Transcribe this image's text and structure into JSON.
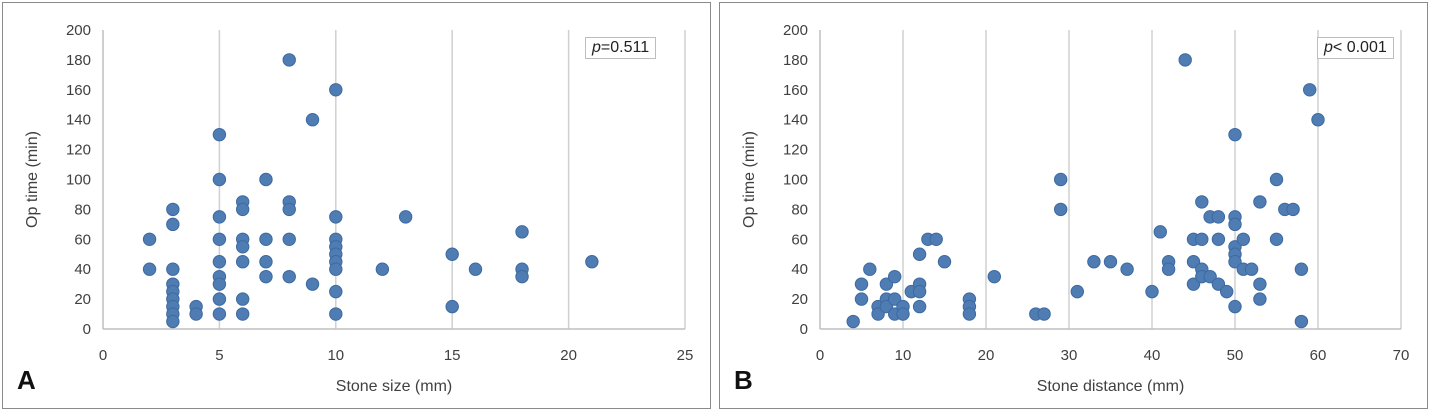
{
  "colors": {
    "marker": "#4f7db3",
    "marker_edge": "#3c6aa0",
    "grid": "#d0d0d0",
    "text": "#404040"
  },
  "chart_data": [
    {
      "type": "scatter",
      "panel_label": "A",
      "xlabel": "Stone size (mm)",
      "ylabel": "Op time (min)",
      "xlim": [
        0,
        25
      ],
      "ylim": [
        0,
        200
      ],
      "xticks": [
        0,
        5,
        10,
        15,
        20,
        25
      ],
      "yticks": [
        0,
        20,
        40,
        60,
        80,
        100,
        120,
        140,
        160,
        180,
        200
      ],
      "grid": "vertical major",
      "annotation": {
        "italic": "p",
        "text": "=0.511"
      },
      "points": [
        [
          2,
          60
        ],
        [
          2,
          40
        ],
        [
          3,
          80
        ],
        [
          3,
          70
        ],
        [
          3,
          40
        ],
        [
          3,
          30
        ],
        [
          3,
          25
        ],
        [
          3,
          20
        ],
        [
          3,
          15
        ],
        [
          3,
          10
        ],
        [
          3,
          5
        ],
        [
          4,
          15
        ],
        [
          4,
          10
        ],
        [
          5,
          130
        ],
        [
          5,
          100
        ],
        [
          5,
          75
        ],
        [
          5,
          60
        ],
        [
          5,
          45
        ],
        [
          5,
          35
        ],
        [
          5,
          30
        ],
        [
          5,
          20
        ],
        [
          5,
          10
        ],
        [
          6,
          85
        ],
        [
          6,
          80
        ],
        [
          6,
          60
        ],
        [
          6,
          55
        ],
        [
          6,
          45
        ],
        [
          6,
          20
        ],
        [
          6,
          10
        ],
        [
          7,
          100
        ],
        [
          7,
          60
        ],
        [
          7,
          45
        ],
        [
          7,
          35
        ],
        [
          8,
          180
        ],
        [
          8,
          85
        ],
        [
          8,
          80
        ],
        [
          8,
          60
        ],
        [
          8,
          35
        ],
        [
          9,
          140
        ],
        [
          9,
          30
        ],
        [
          10,
          160
        ],
        [
          10,
          75
        ],
        [
          10,
          60
        ],
        [
          10,
          55
        ],
        [
          10,
          50
        ],
        [
          10,
          45
        ],
        [
          10,
          40
        ],
        [
          10,
          25
        ],
        [
          10,
          10
        ],
        [
          12,
          40
        ],
        [
          13,
          75
        ],
        [
          15,
          50
        ],
        [
          15,
          15
        ],
        [
          16,
          40
        ],
        [
          18,
          65
        ],
        [
          18,
          40
        ],
        [
          18,
          35
        ],
        [
          21,
          45
        ]
      ]
    },
    {
      "type": "scatter",
      "panel_label": "B",
      "xlabel": "Stone distance (mm)",
      "ylabel": "Op time (min)",
      "xlim": [
        0,
        70
      ],
      "ylim": [
        0,
        200
      ],
      "xticks": [
        0,
        10,
        20,
        30,
        40,
        50,
        60,
        70
      ],
      "yticks": [
        0,
        20,
        40,
        60,
        80,
        100,
        120,
        140,
        160,
        180,
        200
      ],
      "grid": "vertical major",
      "annotation": {
        "italic": "p",
        "text": "< 0.001"
      },
      "points": [
        [
          4,
          5
        ],
        [
          5,
          30
        ],
        [
          5,
          20
        ],
        [
          6,
          40
        ],
        [
          7,
          15
        ],
        [
          7,
          10
        ],
        [
          8,
          30
        ],
        [
          8,
          20
        ],
        [
          8,
          15
        ],
        [
          9,
          35
        ],
        [
          9,
          20
        ],
        [
          9,
          10
        ],
        [
          10,
          15
        ],
        [
          10,
          10
        ],
        [
          11,
          25
        ],
        [
          12,
          50
        ],
        [
          12,
          30
        ],
        [
          12,
          25
        ],
        [
          12,
          15
        ],
        [
          13,
          60
        ],
        [
          14,
          60
        ],
        [
          15,
          45
        ],
        [
          18,
          20
        ],
        [
          18,
          15
        ],
        [
          18,
          10
        ],
        [
          21,
          35
        ],
        [
          26,
          10
        ],
        [
          27,
          10
        ],
        [
          29,
          100
        ],
        [
          29,
          80
        ],
        [
          31,
          25
        ],
        [
          33,
          45
        ],
        [
          35,
          45
        ],
        [
          37,
          40
        ],
        [
          40,
          25
        ],
        [
          41,
          65
        ],
        [
          42,
          45
        ],
        [
          42,
          40
        ],
        [
          44,
          180
        ],
        [
          45,
          60
        ],
        [
          45,
          45
        ],
        [
          45,
          30
        ],
        [
          46,
          85
        ],
        [
          46,
          60
        ],
        [
          46,
          40
        ],
        [
          46,
          35
        ],
        [
          47,
          75
        ],
        [
          47,
          35
        ],
        [
          48,
          75
        ],
        [
          48,
          60
        ],
        [
          48,
          30
        ],
        [
          49,
          25
        ],
        [
          50,
          130
        ],
        [
          50,
          75
        ],
        [
          50,
          70
        ],
        [
          50,
          55
        ],
        [
          50,
          50
        ],
        [
          50,
          45
        ],
        [
          50,
          15
        ],
        [
          51,
          60
        ],
        [
          51,
          40
        ],
        [
          52,
          40
        ],
        [
          53,
          85
        ],
        [
          53,
          30
        ],
        [
          53,
          20
        ],
        [
          55,
          100
        ],
        [
          55,
          60
        ],
        [
          56,
          80
        ],
        [
          57,
          80
        ],
        [
          58,
          40
        ],
        [
          58,
          5
        ],
        [
          59,
          160
        ],
        [
          60,
          140
        ]
      ]
    }
  ]
}
